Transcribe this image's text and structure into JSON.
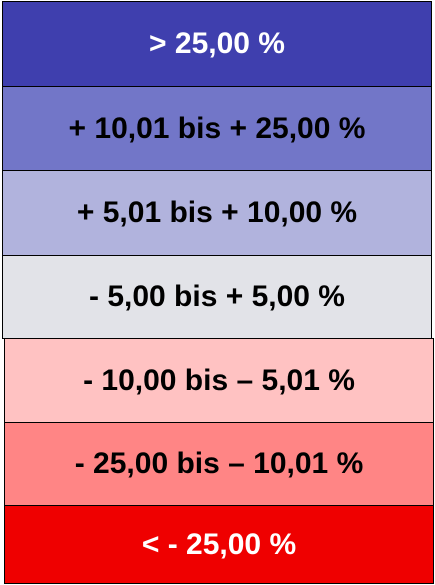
{
  "legend": {
    "items": [
      {
        "label": "> 25,00 %"
      },
      {
        "label": "+ 10,01 bis + 25,00 %"
      },
      {
        "label": "+ 5,01 bis + 10,00 %"
      },
      {
        "label": "- 5,00 bis + 5,00 %"
      },
      {
        "label": "- 10,00 bis – 5,01 %"
      },
      {
        "label": "- 25,00 bis – 10,01 %"
      },
      {
        "label": "< - 25,00 %"
      }
    ]
  }
}
